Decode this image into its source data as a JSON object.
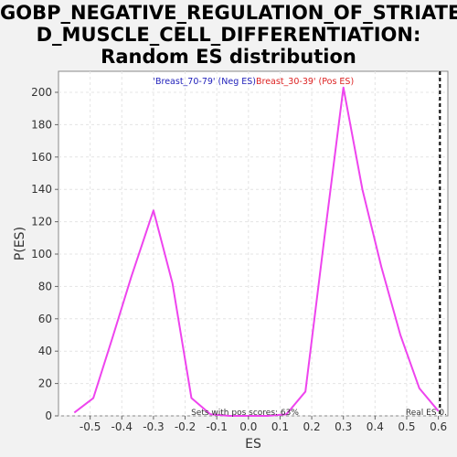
{
  "chart_data": {
    "type": "line",
    "title_lines": [
      "GOBP_NEGATIVE_REGULATION_OF_STRIATE",
      "D_MUSCLE_CELL_DIFFERENTIATION:",
      "Random ES distribution"
    ],
    "xlabel": "ES",
    "ylabel": "P(ES)",
    "xlim": [
      -0.6,
      0.63
    ],
    "ylim": [
      0,
      213
    ],
    "xticks": [
      -0.5,
      -0.4,
      -0.3,
      -0.2,
      -0.1,
      0.0,
      0.1,
      0.2,
      0.3,
      0.4,
      0.5,
      0.6
    ],
    "xtick_labels": [
      "-0.5",
      "-0.4",
      "-0.3",
      "-0.2",
      "-0.1",
      "0.0",
      "0.1",
      "0.2",
      "0.3",
      "0.4",
      "0.5",
      "0.6"
    ],
    "yticks": [
      0,
      20,
      40,
      60,
      80,
      100,
      120,
      140,
      160,
      180,
      200
    ],
    "ytick_labels": [
      "0",
      "20",
      "40",
      "60",
      "80",
      "100",
      "120",
      "140",
      "160",
      "180",
      "200"
    ],
    "grid": true,
    "series": [
      {
        "color": "#ee44ee",
        "x": [
          -0.55,
          -0.49,
          -0.43,
          -0.37,
          -0.3,
          -0.24,
          -0.18,
          -0.12,
          -0.06,
          0.0,
          0.06,
          0.12,
          0.18,
          0.24,
          0.3,
          0.36,
          0.42,
          0.48,
          0.54,
          0.6
        ],
        "y": [
          2,
          11,
          48,
          86,
          127,
          82,
          11,
          1,
          0,
          0,
          0,
          1,
          15,
          110,
          203,
          140,
          92,
          50,
          17,
          3
        ]
      }
    ],
    "real_es": 0.605,
    "legend": {
      "neg_label": "'Breast_70-79' (Neg ES)",
      "pos_label": "Breast_30-39' (Pos ES)",
      "neg_color": "#2222bb",
      "pos_color": "#dd2222"
    },
    "annotations": {
      "pos_scores": "Sets with pos scores: 63%",
      "real_es_label": "Real ES 0."
    }
  }
}
